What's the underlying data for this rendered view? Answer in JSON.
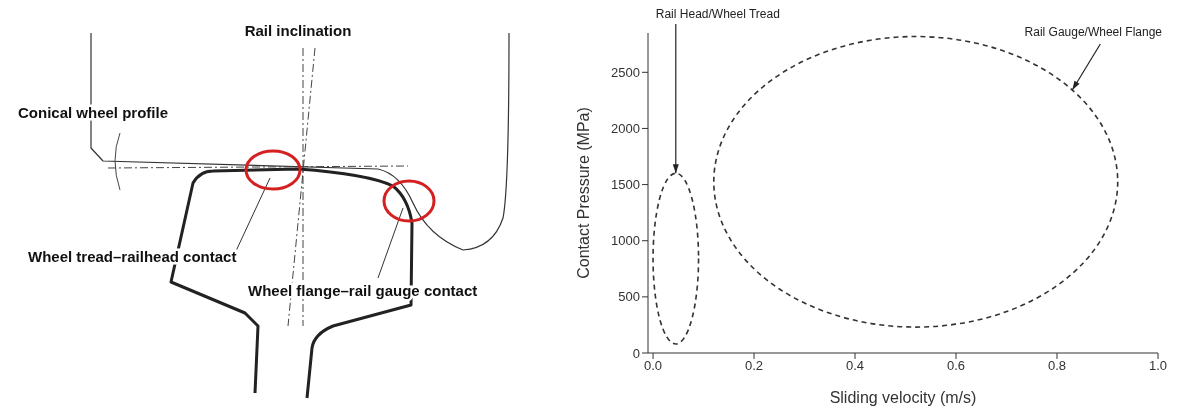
{
  "chart_data": [
    {
      "type": "other",
      "annotations": [
        "Rail inclination",
        "Conical wheel profile",
        "Wheel tread–railhead contact",
        "Wheel flange–rail gauge contact"
      ]
    },
    {
      "type": "line",
      "xlabel": "Sliding velocity (m/s)",
      "ylabel": "Contact Pressure (MPa)",
      "xlim": [
        -0.01,
        1.0
      ],
      "ylim": [
        0,
        2850
      ],
      "xticks": [
        {
          "value": 0,
          "label": "0.0"
        },
        0.2,
        0.4,
        0.6,
        0.8,
        {
          "value": 1.0,
          "label": "1.0"
        }
      ],
      "yticks": [
        0,
        500,
        1000,
        1500,
        2000,
        2500
      ],
      "annotations": [
        "Rail Head/Wheel Tread",
        "Rail Gauge/Wheel Flange"
      ]
    }
  ]
}
